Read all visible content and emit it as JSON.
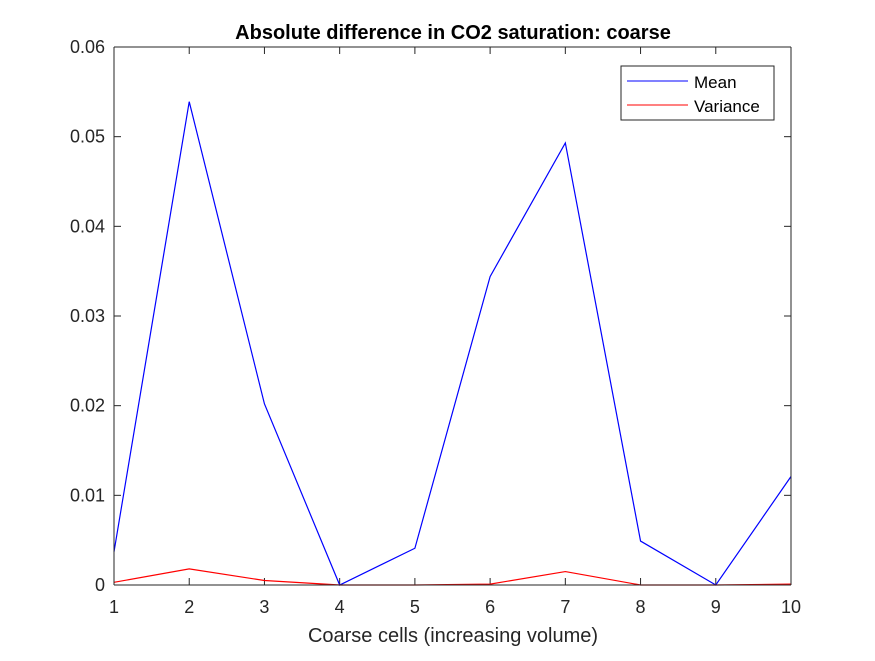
{
  "chart_data": {
    "type": "line",
    "title": "Absolute difference in CO2 saturation: coarse",
    "xlabel": "Coarse cells (increasing volume)",
    "ylabel": "",
    "x": [
      1,
      2,
      3,
      4,
      5,
      6,
      7,
      8,
      9,
      10
    ],
    "xlim": [
      1,
      10
    ],
    "ylim": [
      0,
      0.06
    ],
    "xticks": [
      "1",
      "2",
      "3",
      "4",
      "5",
      "6",
      "7",
      "8",
      "9",
      "10"
    ],
    "yticks": [
      "0",
      "0.01",
      "0.02",
      "0.03",
      "0.04",
      "0.05",
      "0.06"
    ],
    "grid": false,
    "legend_position": "top-right",
    "series": [
      {
        "name": "Mean",
        "color": "#0000ff",
        "values": [
          0.0037,
          0.0539,
          0.0202,
          0.0,
          0.0041,
          0.0344,
          0.0493,
          0.0049,
          0.0,
          0.0121
        ]
      },
      {
        "name": "Variance",
        "color": "#ff0000",
        "values": [
          0.0003,
          0.0018,
          0.0005,
          0.0,
          0.0,
          0.0001,
          0.0015,
          0.0,
          0.0,
          0.0001
        ]
      }
    ]
  }
}
